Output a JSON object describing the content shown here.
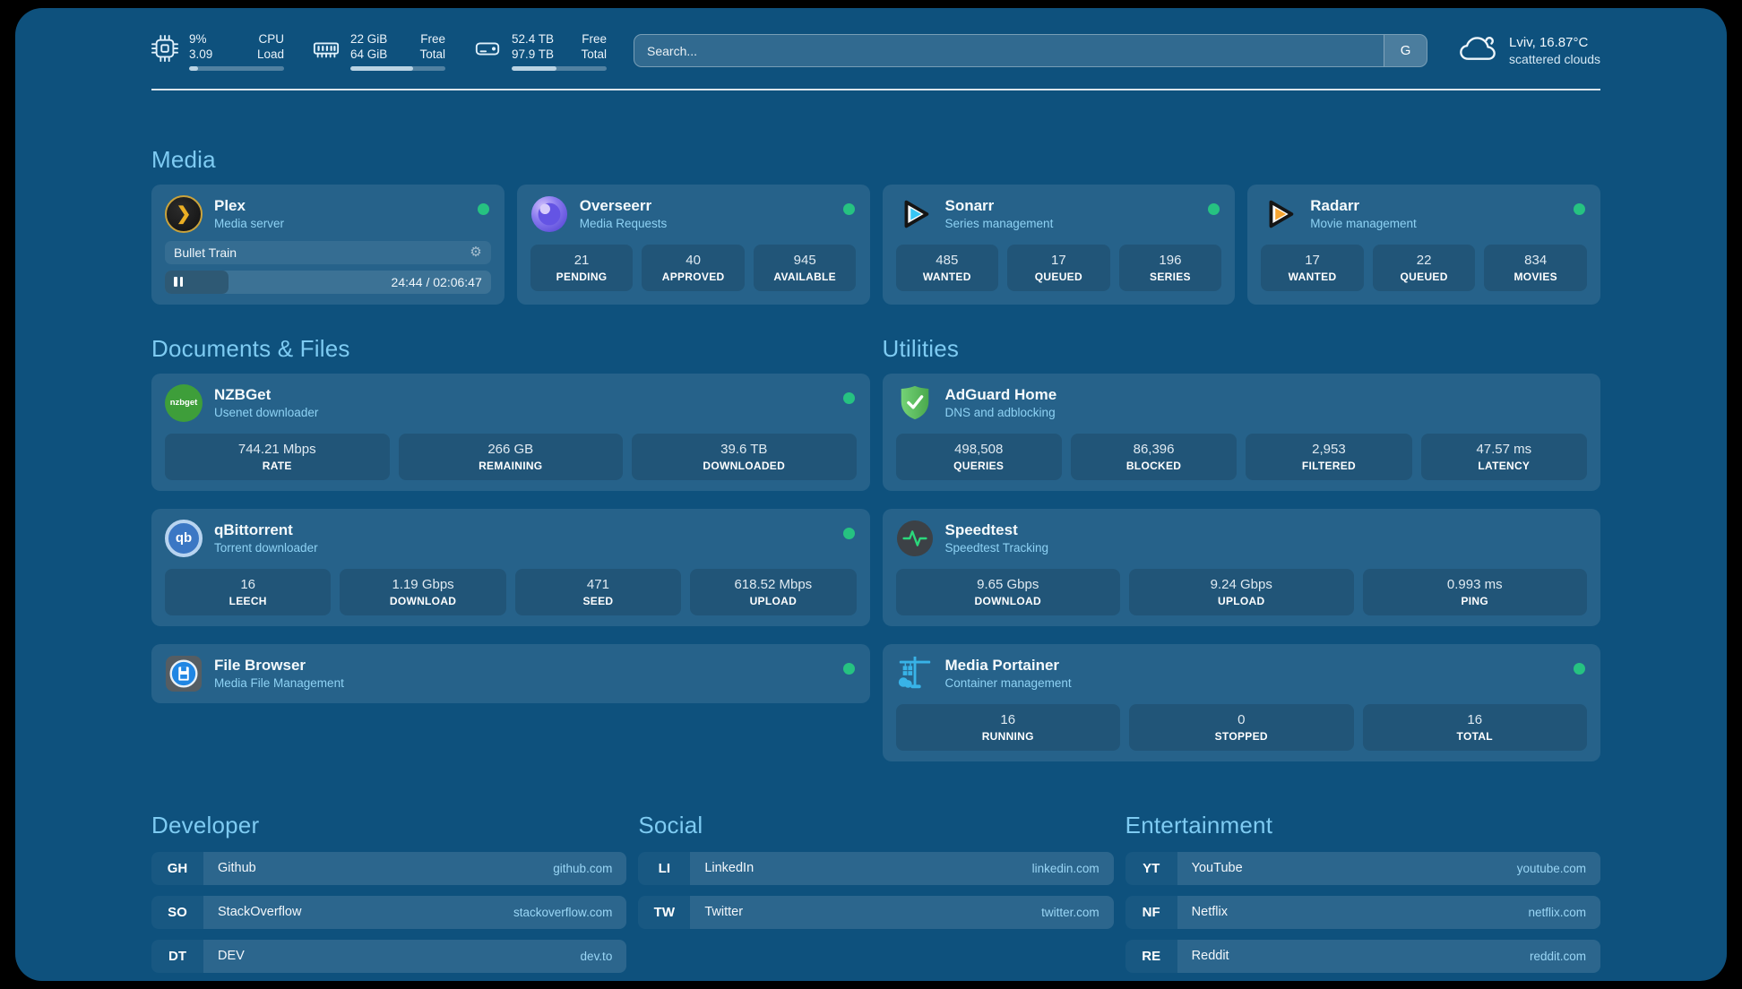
{
  "theme": {
    "accent_text": "#7ecbf2",
    "status_online": "#26c281",
    "background": "#0e517d"
  },
  "header": {
    "system_stats": [
      {
        "icon": "cpu-icon",
        "primary_value": "9%",
        "secondary_value": "3.09",
        "primary_label": "CPU",
        "secondary_label": "Load",
        "progress_pct": 9
      },
      {
        "icon": "ram-icon",
        "primary_value": "22 GiB",
        "secondary_value": "64 GiB",
        "primary_label": "Free",
        "secondary_label": "Total",
        "progress_pct": 66
      },
      {
        "icon": "disk-icon",
        "primary_value": "52.4 TB",
        "secondary_value": "97.9 TB",
        "primary_label": "Free",
        "secondary_label": "Total",
        "progress_pct": 47
      }
    ],
    "search": {
      "placeholder": "Search...",
      "engine_button_label": "G"
    },
    "weather": {
      "location_temp": "Lviv, 16.87°C",
      "condition": "scattered clouds"
    }
  },
  "sections": {
    "media": {
      "title": "Media"
    },
    "documents": {
      "title": "Documents & Files"
    },
    "utilities": {
      "title": "Utilities"
    },
    "developer": {
      "title": "Developer"
    },
    "social": {
      "title": "Social"
    },
    "entertainment": {
      "title": "Entertainment"
    }
  },
  "apps": {
    "media": [
      {
        "icon": "plex-icon",
        "name": "Plex",
        "subtitle": "Media server",
        "online": true,
        "player": {
          "title": "Bullet Train",
          "time": "24:44 / 02:06:47",
          "progress_pct": 19.5,
          "state": "paused"
        }
      },
      {
        "icon": "overseerr-icon",
        "name": "Overseerr",
        "subtitle": "Media Requests",
        "online": true,
        "stats": [
          {
            "value": "21",
            "label": "PENDING"
          },
          {
            "value": "40",
            "label": "APPROVED"
          },
          {
            "value": "945",
            "label": "AVAILABLE"
          }
        ]
      },
      {
        "icon": "sonarr-icon",
        "name": "Sonarr",
        "subtitle": "Series management",
        "online": true,
        "stats": [
          {
            "value": "485",
            "label": "WANTED"
          },
          {
            "value": "17",
            "label": "QUEUED"
          },
          {
            "value": "196",
            "label": "SERIES"
          }
        ]
      },
      {
        "icon": "radarr-icon",
        "name": "Radarr",
        "subtitle": "Movie management",
        "online": true,
        "stats": [
          {
            "value": "17",
            "label": "WANTED"
          },
          {
            "value": "22",
            "label": "QUEUED"
          },
          {
            "value": "834",
            "label": "MOVIES"
          }
        ]
      }
    ],
    "documents": [
      {
        "icon": "nzbget-icon",
        "icon_text": "nzbget",
        "name": "NZBGet",
        "subtitle": "Usenet downloader",
        "online": true,
        "stats": [
          {
            "value": "744.21 Mbps",
            "label": "RATE"
          },
          {
            "value": "266 GB",
            "label": "REMAINING"
          },
          {
            "value": "39.6 TB",
            "label": "DOWNLOADED"
          }
        ]
      },
      {
        "icon": "qbittorrent-icon",
        "icon_text": "qb",
        "name": "qBittorrent",
        "subtitle": "Torrent downloader",
        "online": true,
        "stats": [
          {
            "value": "16",
            "label": "LEECH"
          },
          {
            "value": "1.19 Gbps",
            "label": "DOWNLOAD"
          },
          {
            "value": "471",
            "label": "SEED"
          },
          {
            "value": "618.52 Mbps",
            "label": "UPLOAD"
          }
        ]
      },
      {
        "icon": "filebrowser-icon",
        "name": "File Browser",
        "subtitle": "Media File Management",
        "online": true
      }
    ],
    "utilities": [
      {
        "icon": "adguard-icon",
        "name": "AdGuard Home",
        "subtitle": "DNS and adblocking",
        "online": false,
        "stats": [
          {
            "value": "498,508",
            "label": "QUERIES"
          },
          {
            "value": "86,396",
            "label": "BLOCKED"
          },
          {
            "value": "2,953",
            "label": "FILTERED"
          },
          {
            "value": "47.57 ms",
            "label": "LATENCY"
          }
        ]
      },
      {
        "icon": "speedtest-icon",
        "name": "Speedtest",
        "subtitle": "Speedtest Tracking",
        "online": false,
        "stats": [
          {
            "value": "9.65 Gbps",
            "label": "DOWNLOAD"
          },
          {
            "value": "9.24 Gbps",
            "label": "UPLOAD"
          },
          {
            "value": "0.993 ms",
            "label": "PING"
          }
        ]
      },
      {
        "icon": "portainer-icon",
        "name": "Media Portainer",
        "subtitle": "Container management",
        "online": true,
        "stats": [
          {
            "value": "16",
            "label": "RUNNING"
          },
          {
            "value": "0",
            "label": "STOPPED"
          },
          {
            "value": "16",
            "label": "TOTAL"
          }
        ]
      }
    ]
  },
  "bookmarks": {
    "developer": [
      {
        "abbrev": "GH",
        "name": "Github",
        "url": "github.com"
      },
      {
        "abbrev": "SO",
        "name": "StackOverflow",
        "url": "stackoverflow.com"
      },
      {
        "abbrev": "DT",
        "name": "DEV",
        "url": "dev.to"
      }
    ],
    "social": [
      {
        "abbrev": "LI",
        "name": "LinkedIn",
        "url": "linkedin.com"
      },
      {
        "abbrev": "TW",
        "name": "Twitter",
        "url": "twitter.com"
      }
    ],
    "entertainment": [
      {
        "abbrev": "YT",
        "name": "YouTube",
        "url": "youtube.com"
      },
      {
        "abbrev": "NF",
        "name": "Netflix",
        "url": "netflix.com"
      },
      {
        "abbrev": "RE",
        "name": "Reddit",
        "url": "reddit.com"
      }
    ]
  }
}
